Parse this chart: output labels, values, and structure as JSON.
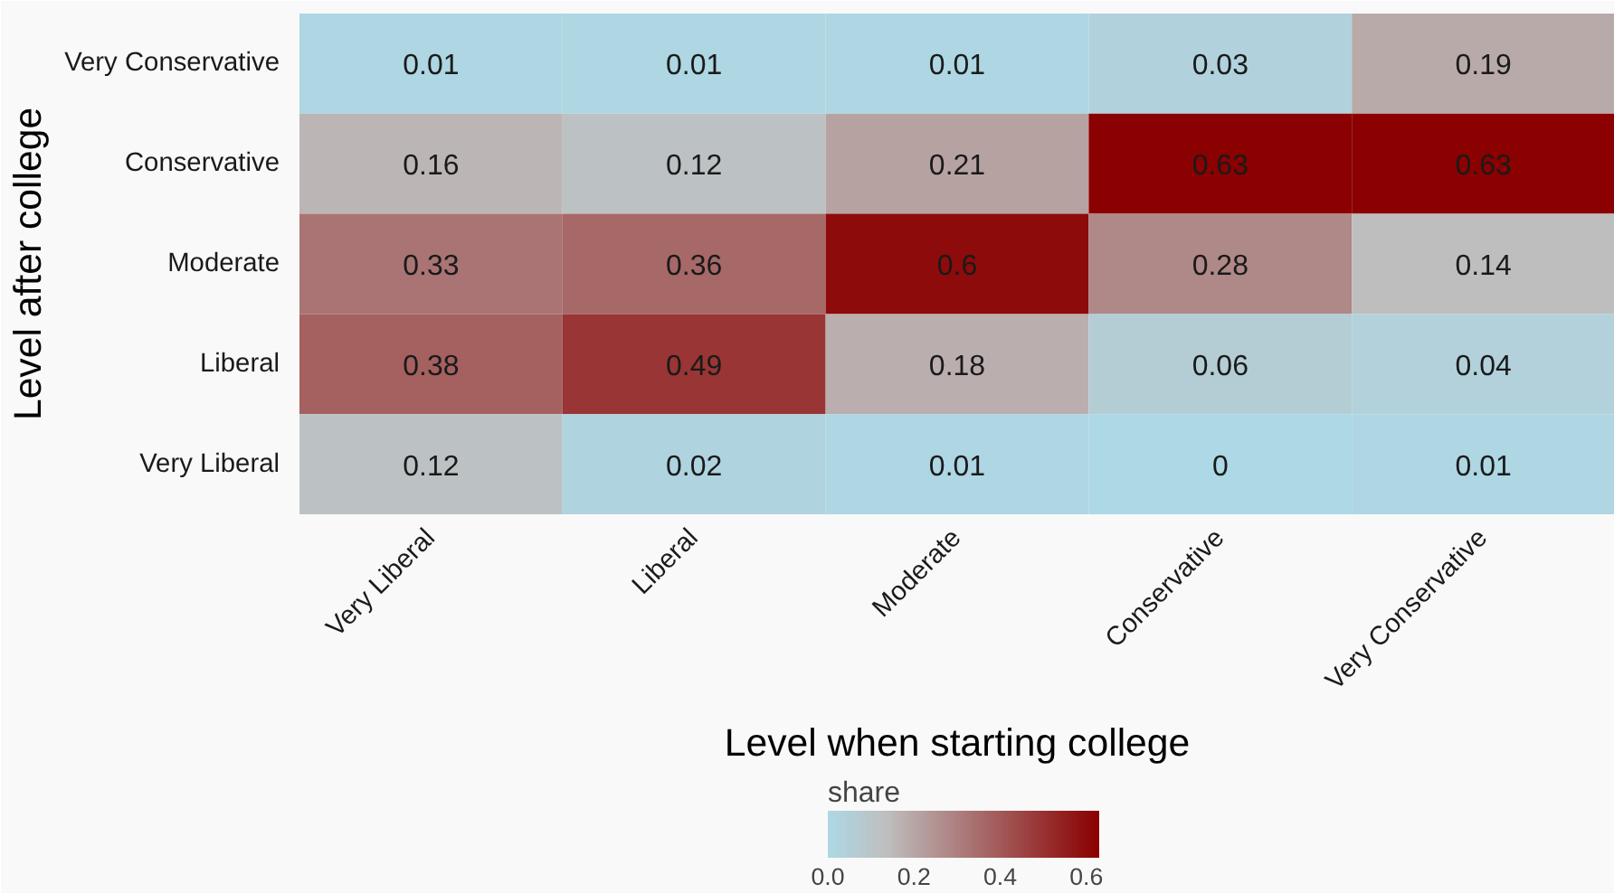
{
  "chart_data": {
    "type": "heatmap",
    "xlabel": "Level when starting college",
    "ylabel": "Level after college",
    "clabel": "share",
    "categories": [
      "Very Liberal",
      "Liberal",
      "Moderate",
      "Conservative",
      "Very Conservative"
    ],
    "y_categories": [
      "Very Conservative",
      "Conservative",
      "Moderate",
      "Liberal",
      "Very Liberal"
    ],
    "cells": [
      [
        0.01,
        0.01,
        0.01,
        0.03,
        0.19
      ],
      [
        0.16,
        0.12,
        0.21,
        0.63,
        0.63
      ],
      [
        0.33,
        0.36,
        0.6,
        0.28,
        0.14
      ],
      [
        0.38,
        0.49,
        0.18,
        0.06,
        0.04
      ],
      [
        0.12,
        0.02,
        0.01,
        0,
        0.01
      ]
    ],
    "clim": [
      0,
      0.63
    ],
    "cticks": [
      {
        "value": 0,
        "label": "0.0"
      },
      {
        "value": 0.2,
        "label": "0.2"
      },
      {
        "value": 0.4,
        "label": "0.4"
      },
      {
        "value": 0.6,
        "label": "0.6"
      }
    ],
    "data_labels": true
  }
}
